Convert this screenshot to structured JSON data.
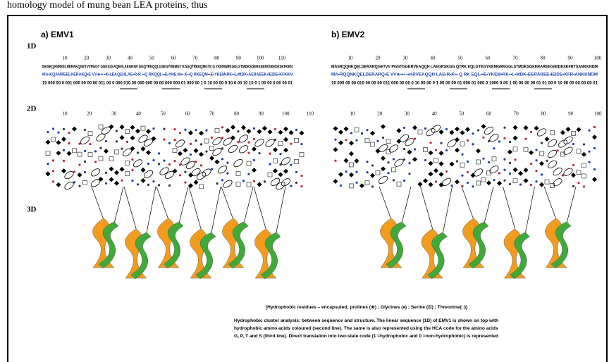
{
  "header_text": "homology model of mung bean LEA proteins, thus",
  "row_labels": [
    "1D",
    "2D",
    "3D"
  ],
  "panels": [
    {
      "label": "a) EMV1",
      "sequence": "MASKQANREELHERAKQGETVVPGGT GGKSLEAQEHLAEGRSR GGQTRKQQLGSEGYHEMGT KGGQTRKEQMGTE G YKEMGRKGGLSTMDKSGERAEEEKGIEIDESKFKKN",
      "hydrophobic_line": "MA•KQANREELHERAKQ•E VV★•• •K•LEAQEHLAE•R•R ••Q RKQQL••E•YHE M•• K••Q RKEQM••E•YKEM•RK••L•MDK•AERAEEK•IEIDE•KFKKN",
      "binary_code": "10 000 00 0 001 000 00 00 00 011 00 0 000 010 00 000 000 00 00 000 000 01 000 00 1 0 10 00 00 0 10 0 00 10 10 0 1 00 00 0 00 00 01",
      "ruler_ticks": [
        "10",
        "20",
        "30",
        "40",
        "50",
        "60",
        "70",
        "80",
        "90",
        "100",
        "110"
      ],
      "hca_ticks": [
        "10",
        "20",
        "30",
        "40",
        "50",
        "60",
        "70",
        "80",
        "90",
        "100",
        "110"
      ]
    },
    {
      "label": "b) EMV2",
      "sequence": "MASRQQNKQELDERARQGETVV PGGTGGKRVEAQQH LAEGRSKGG QTRK EQLGTEGYKEMGRKGGLSTMDKSGEERAREEGIEIDESKFRTSANKKNDM",
      "hydrophobic_line": "MA•RQQNKQELDERARQ•E VV★••• ••KRVEAQQH LAE•R•K•• Q RK EQL••E•YKEM•RK••L•MDK•EERAREE•IEIDE•KFR•ANKKNDM",
      "binary_code": "10 000 00 00 010 00 00 00 011 000 00 00 0 10 00 00 0 1 00 00 00 01 000 01 000 0 1000 0 00 1 00 00 00 00 01 01 00 0 10 00 00 00 00 00 01",
      "ruler_ticks": [
        "10",
        "20",
        "30",
        "40",
        "50",
        "60",
        "70",
        "80",
        "90",
        "100"
      ],
      "hca_ticks": [
        "10",
        "20",
        "30",
        "40",
        "50",
        "60",
        "70",
        "80",
        "90",
        "100"
      ]
    }
  ],
  "legend": "[Hydrophobic residues – encapsuled; prolines (★) ;  Glycines (♦) ; Serine (⊡) ; Threonine(□)]",
  "caption": [
    "Hydrophobic cluster analysis: between sequence and structure. The linear sequence (1D) of EMV1 is shown  on top with",
    "hydrophobic amino acids coloured (second line). The same  is also represented  using the HCA code for the amino acids",
    "G, P, T and S (third line). Direct translation into two-state code (1 =hydrophobic and 0 =non-hydrophobic) is represented"
  ]
}
